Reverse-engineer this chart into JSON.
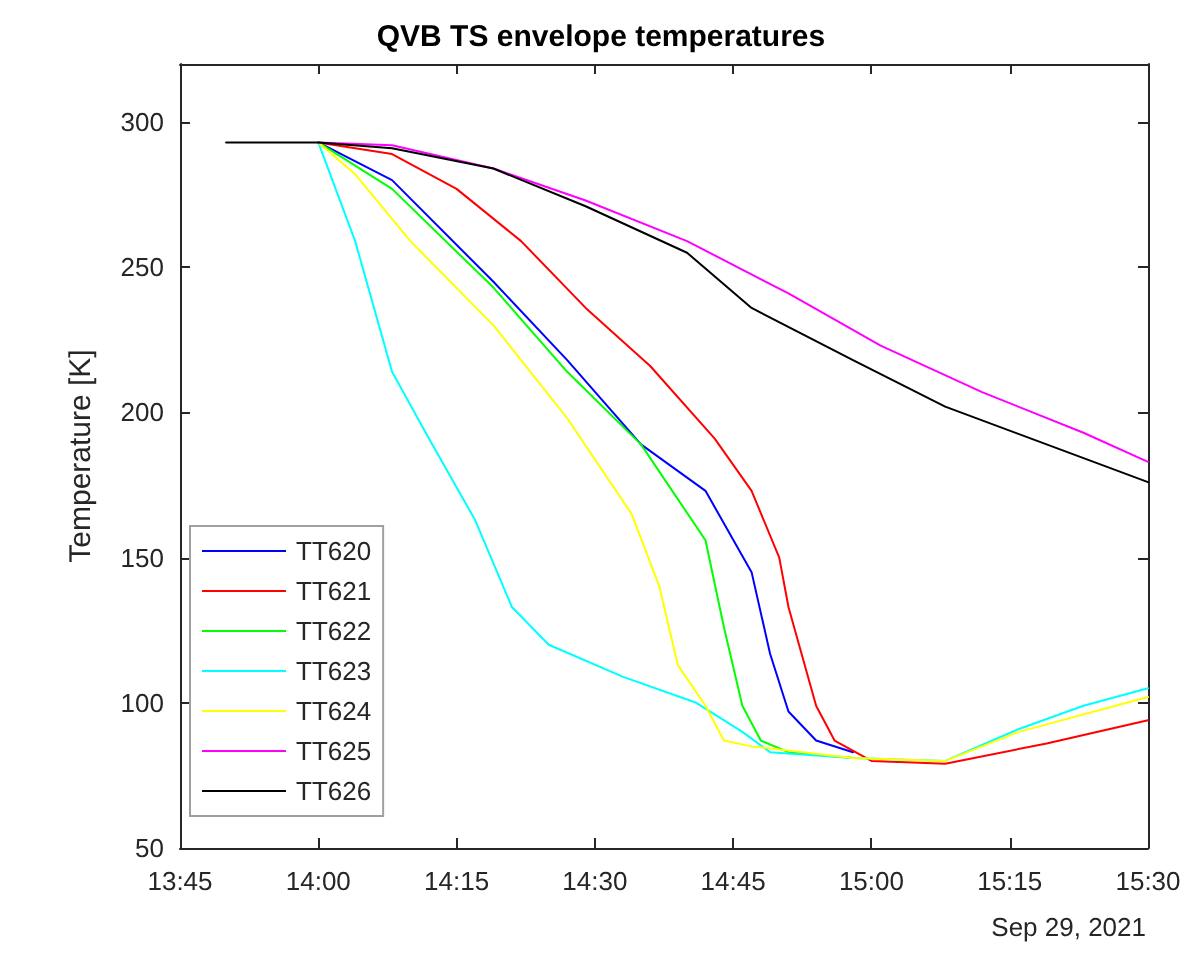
{
  "chart_data": {
    "type": "line",
    "title": "QVB TS envelope temperatures",
    "ylabel": "Temperature [K]",
    "annotations": [
      "Sep 29, 2021"
    ],
    "xlim": [
      "2021-09-29T13:45",
      "2021-09-29T15:30"
    ],
    "xticks": [
      {
        "value": "2021-09-29T13:45",
        "label": "13:45"
      },
      {
        "value": "2021-09-29T14:00",
        "label": "14:00"
      },
      {
        "value": "2021-09-29T14:15",
        "label": "14:15"
      },
      {
        "value": "2021-09-29T14:30",
        "label": "14:30"
      },
      {
        "value": "2021-09-29T14:45",
        "label": "14:45"
      },
      {
        "value": "2021-09-29T15:00",
        "label": "15:00"
      },
      {
        "value": "2021-09-29T15:15",
        "label": "15:15"
      },
      {
        "value": "2021-09-29T15:30",
        "label": "15:30"
      }
    ],
    "ylim": [
      50,
      320
    ],
    "yticks": [
      50,
      100,
      150,
      200,
      250,
      300
    ],
    "grid": false,
    "legend": "bottom left",
    "marker": "none",
    "line_style": "solid",
    "series": [
      {
        "name": "TT620",
        "color": "#0000ff",
        "x": [
          "2021-09-29T14:00",
          "2021-09-29T14:08",
          "2021-09-29T14:19",
          "2021-09-29T14:27",
          "2021-09-29T14:35",
          "2021-09-29T14:42",
          "2021-09-29T14:47",
          "2021-09-29T14:49",
          "2021-09-29T14:51",
          "2021-09-29T14:54",
          "2021-09-29T14:58"
        ],
        "values": [
          293,
          280,
          245,
          218,
          189,
          173,
          145,
          117,
          97,
          87,
          83
        ]
      },
      {
        "name": "TT621",
        "color": "#ff0000",
        "x": [
          "2021-09-29T14:00",
          "2021-09-29T14:08",
          "2021-09-29T14:15",
          "2021-09-29T14:22",
          "2021-09-29T14:29",
          "2021-09-29T14:36",
          "2021-09-29T14:43",
          "2021-09-29T14:47",
          "2021-09-29T14:50",
          "2021-09-29T14:51",
          "2021-09-29T14:54",
          "2021-09-29T14:56",
          "2021-09-29T15:00",
          "2021-09-29T15:08",
          "2021-09-29T15:19",
          "2021-09-29T15:30"
        ],
        "values": [
          293,
          289,
          277,
          259,
          236,
          216,
          191,
          173,
          150,
          133,
          99,
          87,
          80,
          79,
          86,
          94
        ]
      },
      {
        "name": "TT622",
        "color": "#00ff00",
        "x": [
          "2021-09-29T14:00",
          "2021-09-29T14:08",
          "2021-09-29T14:19",
          "2021-09-29T14:27",
          "2021-09-29T14:35",
          "2021-09-29T14:42",
          "2021-09-29T14:44",
          "2021-09-29T14:46",
          "2021-09-29T14:48",
          "2021-09-29T14:51",
          "2021-09-29T14:58"
        ],
        "values": [
          293,
          277,
          243,
          214,
          189,
          156,
          126,
          99,
          87,
          83,
          81
        ]
      },
      {
        "name": "TT623",
        "color": "#00ffff",
        "x": [
          "2021-09-29T14:00",
          "2021-09-29T14:04",
          "2021-09-29T14:08",
          "2021-09-29T14:12",
          "2021-09-29T14:17",
          "2021-09-29T14:21",
          "2021-09-29T14:25",
          "2021-09-29T14:33",
          "2021-09-29T14:41",
          "2021-09-29T14:46",
          "2021-09-29T14:49",
          "2021-09-29T14:58",
          "2021-09-29T15:08",
          "2021-09-29T15:16",
          "2021-09-29T15:23",
          "2021-09-29T15:30"
        ],
        "values": [
          293,
          259,
          214,
          191,
          163,
          133,
          120,
          109,
          100,
          90,
          83,
          81,
          80,
          91,
          99,
          105
        ]
      },
      {
        "name": "TT624",
        "color": "#ffff00",
        "x": [
          "2021-09-29T14:00",
          "2021-09-29T14:04",
          "2021-09-29T14:10",
          "2021-09-29T14:19",
          "2021-09-29T14:27",
          "2021-09-29T14:34",
          "2021-09-29T14:37",
          "2021-09-29T14:39",
          "2021-09-29T14:42",
          "2021-09-29T14:44",
          "2021-09-29T14:47",
          "2021-09-29T14:58",
          "2021-09-29T15:08",
          "2021-09-29T15:16",
          "2021-09-29T15:30"
        ],
        "values": [
          293,
          282,
          259,
          230,
          198,
          165,
          140,
          113,
          99,
          87,
          85,
          81,
          80,
          90,
          102
        ]
      },
      {
        "name": "TT625",
        "color": "#ff00ff",
        "x": [
          "2021-09-29T14:00",
          "2021-09-29T14:08",
          "2021-09-29T14:19",
          "2021-09-29T14:29",
          "2021-09-29T14:40",
          "2021-09-29T14:51",
          "2021-09-29T15:01",
          "2021-09-29T15:12",
          "2021-09-29T15:23",
          "2021-09-29T15:30"
        ],
        "values": [
          293,
          292,
          284,
          273,
          259,
          241,
          223,
          207,
          193,
          183
        ]
      },
      {
        "name": "TT626",
        "color": "#000000",
        "x": [
          "2021-09-29T13:50",
          "2021-09-29T14:00",
          "2021-09-29T14:08",
          "2021-09-29T14:19",
          "2021-09-29T14:29",
          "2021-09-29T14:40",
          "2021-09-29T14:47",
          "2021-09-29T14:58",
          "2021-09-29T15:08",
          "2021-09-29T15:19",
          "2021-09-29T15:30"
        ],
        "values": [
          293,
          293,
          291,
          284,
          271,
          255,
          236,
          218,
          202,
          189,
          176
        ]
      }
    ]
  }
}
